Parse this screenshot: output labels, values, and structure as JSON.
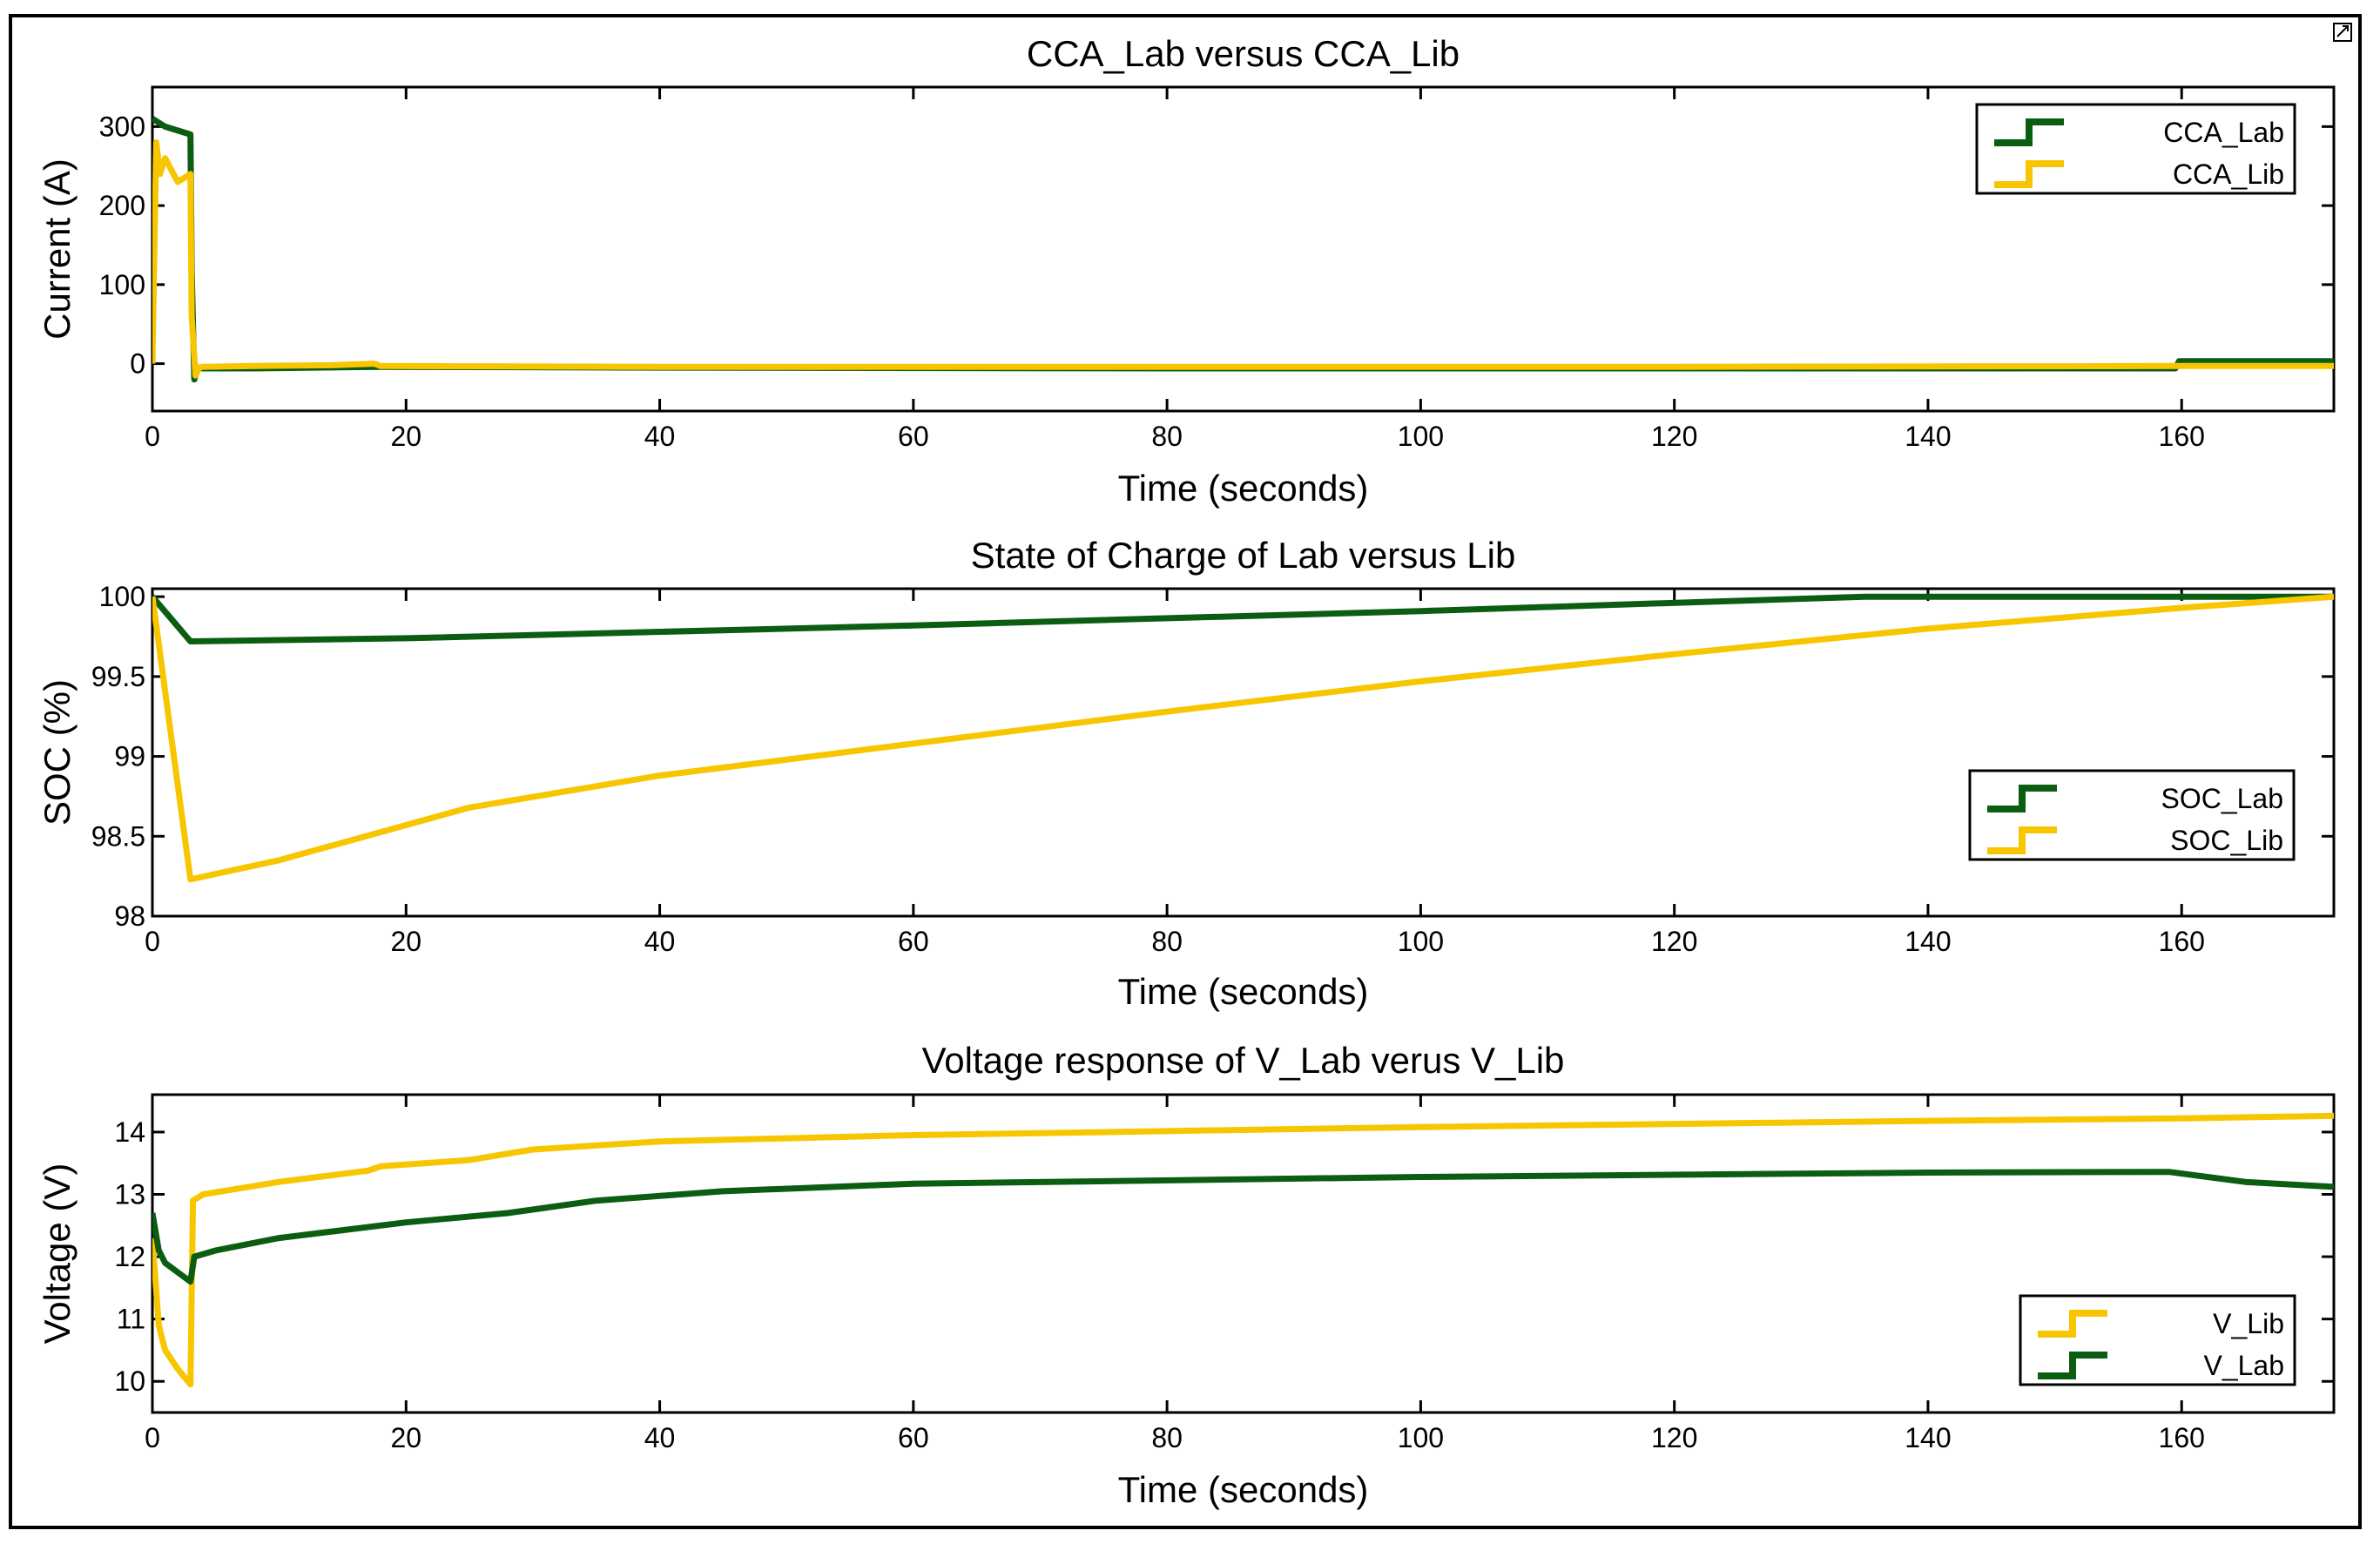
{
  "colors": {
    "lab": "#0b5d12",
    "lib": "#f7c600",
    "lab_noise": "#19a23a"
  },
  "chart_data": [
    {
      "type": "line",
      "title": "CCA_Lab versus CCA_Lib",
      "xlabel": "Time (seconds)",
      "ylabel": "Current (A)",
      "xlim": [
        0,
        172
      ],
      "ylim": [
        -60,
        350
      ],
      "xticks": [
        0,
        20,
        40,
        60,
        80,
        100,
        120,
        140,
        160
      ],
      "yticks": [
        0,
        100,
        200,
        300
      ],
      "legend_placement": "top-right",
      "series": [
        {
          "name": "CCA_Lab",
          "color_key": "lab",
          "x": [
            0,
            0.5,
            1,
            2,
            3,
            3.1,
            3.3,
            3.6,
            4,
            8,
            18,
            40,
            80,
            120,
            150,
            159.5,
            159.8,
            165,
            172
          ],
          "y": [
            310,
            305,
            300,
            295,
            290,
            120,
            -20,
            -5,
            -6,
            -6,
            -4,
            -5,
            -6,
            -6,
            -6,
            -6,
            3,
            3,
            3
          ]
        },
        {
          "name": "CCA_Lib",
          "color_key": "lib",
          "x": [
            0,
            0.3,
            0.6,
            1,
            2,
            3,
            3.1,
            3.4,
            3.7,
            4,
            8,
            14,
            17.5,
            18,
            40,
            80,
            120,
            160,
            172
          ],
          "y": [
            0,
            280,
            240,
            260,
            230,
            240,
            60,
            -15,
            -5,
            -4,
            -3,
            -2,
            0,
            -3,
            -4,
            -4,
            -4,
            -3,
            -3
          ]
        }
      ]
    },
    {
      "type": "line",
      "title": "State of Charge of Lab versus Lib",
      "xlabel": "Time (seconds)",
      "ylabel": "SOC (%)",
      "xlim": [
        0,
        172
      ],
      "ylim": [
        98,
        100.05
      ],
      "xticks": [
        0,
        20,
        40,
        60,
        80,
        100,
        120,
        140,
        160
      ],
      "yticks": [
        98,
        98.5,
        99,
        99.5,
        100
      ],
      "legend_placement": "lower-right",
      "series": [
        {
          "name": "SOC_Lab",
          "color_key": "lab",
          "x": [
            0,
            3,
            20,
            60,
            100,
            135,
            160,
            172
          ],
          "y": [
            100,
            99.72,
            99.74,
            99.82,
            99.91,
            100,
            100,
            100
          ]
        },
        {
          "name": "SOC_Lib",
          "color_key": "lib",
          "x": [
            0,
            3,
            10,
            25,
            40,
            60,
            80,
            100,
            120,
            140,
            160,
            172
          ],
          "y": [
            100,
            98.23,
            98.35,
            98.68,
            98.88,
            99.08,
            99.28,
            99.47,
            99.64,
            99.8,
            99.93,
            100
          ]
        }
      ]
    },
    {
      "type": "line",
      "title": "Voltage response of V_Lab verus V_Lib",
      "xlabel": "Time (seconds)",
      "ylabel": "Voltage (V)",
      "xlim": [
        0,
        172
      ],
      "ylim": [
        9.5,
        14.6
      ],
      "xticks": [
        0,
        20,
        40,
        60,
        80,
        100,
        120,
        140,
        160
      ],
      "yticks": [
        10,
        11,
        12,
        13,
        14
      ],
      "legend_placement": "lower-right",
      "series": [
        {
          "name": "V_Lib",
          "color_key": "lib",
          "x": [
            0,
            0.5,
            1,
            2,
            3,
            3.2,
            4,
            10,
            17,
            18,
            25,
            30,
            40,
            60,
            100,
            140,
            160,
            172
          ],
          "y": [
            12.3,
            10.9,
            10.5,
            10.2,
            9.95,
            12.9,
            13.0,
            13.2,
            13.38,
            13.45,
            13.55,
            13.72,
            13.85,
            13.95,
            14.08,
            14.18,
            14.22,
            14.26
          ]
        },
        {
          "name": "V_Lab",
          "color_key": "lab",
          "x": [
            0,
            0.5,
            1,
            2,
            3,
            3.3,
            5,
            10,
            20,
            28,
            35,
            45,
            60,
            100,
            140,
            159,
            165,
            172
          ],
          "y": [
            12.7,
            12.1,
            11.9,
            11.75,
            11.6,
            12.0,
            12.1,
            12.3,
            12.55,
            12.7,
            12.9,
            13.05,
            13.17,
            13.28,
            13.35,
            13.36,
            13.2,
            13.12
          ]
        }
      ]
    }
  ]
}
